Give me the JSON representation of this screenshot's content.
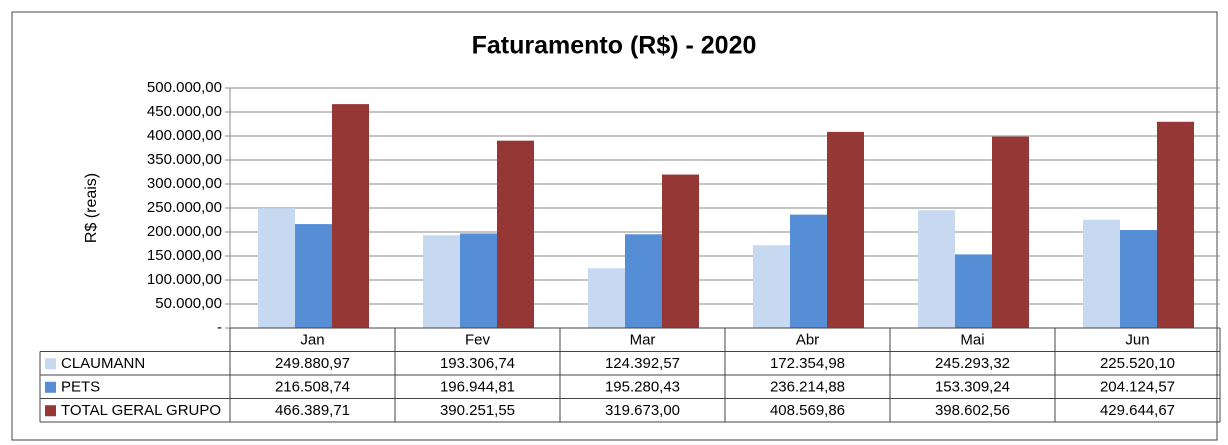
{
  "chart_data": {
    "type": "bar",
    "title": "Faturamento (R$) - 2020",
    "y_label": "R$ (reais)",
    "categories": [
      "Jan",
      "Fev",
      "Mar",
      "Abr",
      "Mai",
      "Jun"
    ],
    "series": [
      {
        "name": "CLAUMANN",
        "color": "#c6d9f1",
        "values": [
          249880.97,
          193306.74,
          124392.57,
          172354.98,
          245293.32,
          225520.1
        ],
        "value_labels": [
          "249.880,97",
          "193.306,74",
          "124.392,57",
          "172.354,98",
          "245.293,32",
          "225.520,10"
        ]
      },
      {
        "name": "PETS",
        "color": "#558ed5",
        "values": [
          216508.74,
          196944.81,
          195280.43,
          236214.88,
          153309.24,
          204124.57
        ],
        "value_labels": [
          "216.508,74",
          "196.944,81",
          "195.280,43",
          "236.214,88",
          "153.309,24",
          "204.124,57"
        ]
      },
      {
        "name": "TOTAL GERAL GRUPO",
        "color": "#953735",
        "values": [
          466389.71,
          390251.55,
          319673.0,
          408569.86,
          398602.56,
          429644.67
        ],
        "value_labels": [
          "466.389,71",
          "390.251,55",
          "319.673,00",
          "408.569,86",
          "398.602,56",
          "429.644,67"
        ]
      }
    ],
    "ylim": [
      0,
      500000
    ],
    "yticks": [
      {
        "value": 0,
        "label": "-"
      },
      {
        "value": 50000,
        "label": "50.000,00"
      },
      {
        "value": 100000,
        "label": "100.000,00"
      },
      {
        "value": 150000,
        "label": "150.000,00"
      },
      {
        "value": 200000,
        "label": "200.000,00"
      },
      {
        "value": 250000,
        "label": "250.000,00"
      },
      {
        "value": 300000,
        "label": "300.000,00"
      },
      {
        "value": 350000,
        "label": "350.000,00"
      },
      {
        "value": 400000,
        "label": "400.000,00"
      },
      {
        "value": 450000,
        "label": "450.000,00"
      },
      {
        "value": 500000,
        "label": "500.000,00"
      }
    ],
    "grid": true
  }
}
